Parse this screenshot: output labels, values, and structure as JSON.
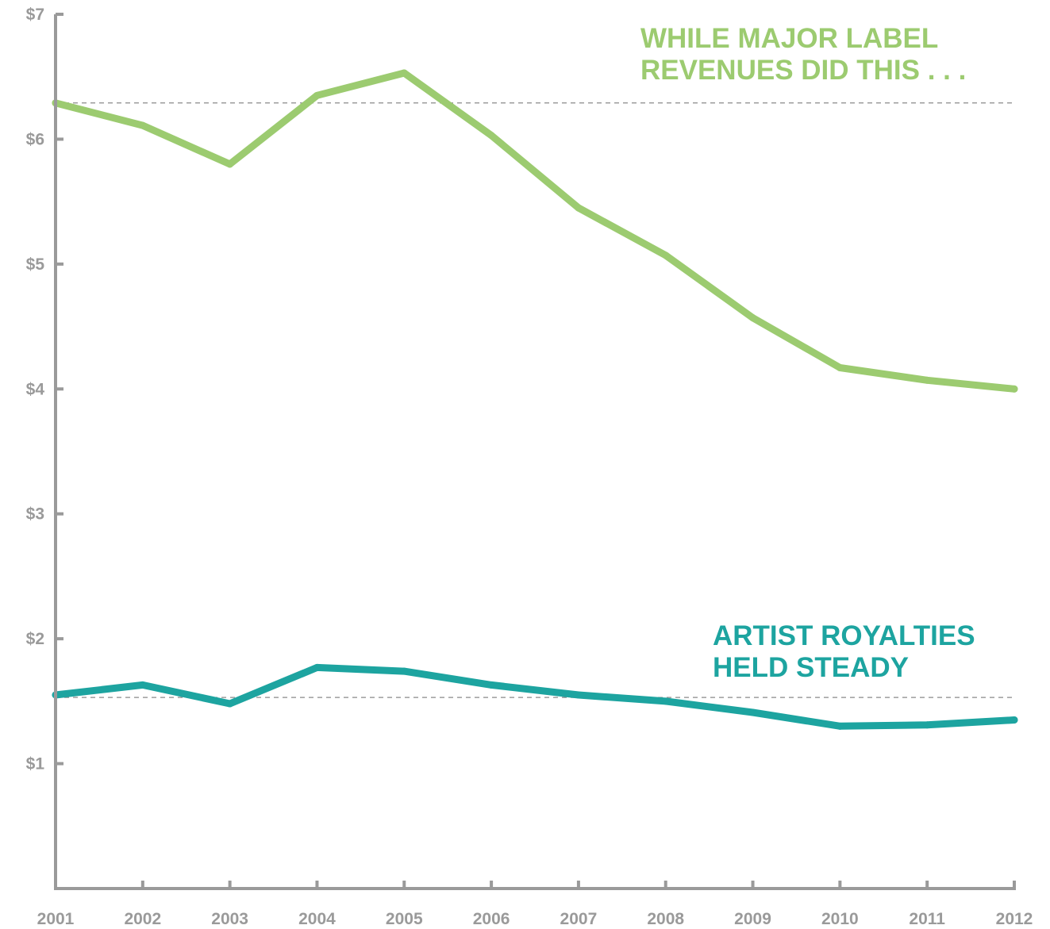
{
  "chart_data": {
    "type": "line",
    "x": [
      2001,
      2002,
      2003,
      2004,
      2005,
      2006,
      2007,
      2008,
      2009,
      2010,
      2011,
      2012
    ],
    "x_tick_labels": [
      "2001",
      "2002",
      "2003",
      "2004",
      "2005",
      "2006",
      "2007",
      "2008",
      "2009",
      "2010",
      "2011",
      "2012"
    ],
    "y_tick_labels": [
      "$1",
      "$2",
      "$3",
      "$4",
      "$5",
      "$6",
      "$7"
    ],
    "y_ticks": [
      1,
      2,
      3,
      4,
      5,
      6,
      7
    ],
    "ylim": [
      0,
      7
    ],
    "grid": false,
    "series": [
      {
        "key": "major_label_revenues",
        "values": [
          6.29,
          6.11,
          5.8,
          6.35,
          6.53,
          6.03,
          5.45,
          5.07,
          4.57,
          4.17,
          4.07,
          4.0
        ],
        "color": "#9ccb70",
        "reference_line": 6.29
      },
      {
        "key": "artist_royalties",
        "values": [
          1.55,
          1.63,
          1.48,
          1.77,
          1.74,
          1.63,
          1.55,
          1.5,
          1.41,
          1.3,
          1.31,
          1.35
        ],
        "color": "#1da4a0",
        "reference_line": 1.53
      }
    ],
    "annotations": [
      {
        "key": "major_label_revenues",
        "lines": [
          "WHILE MAJOR LABEL",
          "REVENUES DID THIS . . ."
        ],
        "color": "#9ccb70"
      },
      {
        "key": "artist_royalties",
        "lines": [
          "ARTIST ROYALTIES",
          "HELD STEADY"
        ],
        "color": "#1da4a0"
      }
    ],
    "axis_color": "#9a9a9a"
  }
}
